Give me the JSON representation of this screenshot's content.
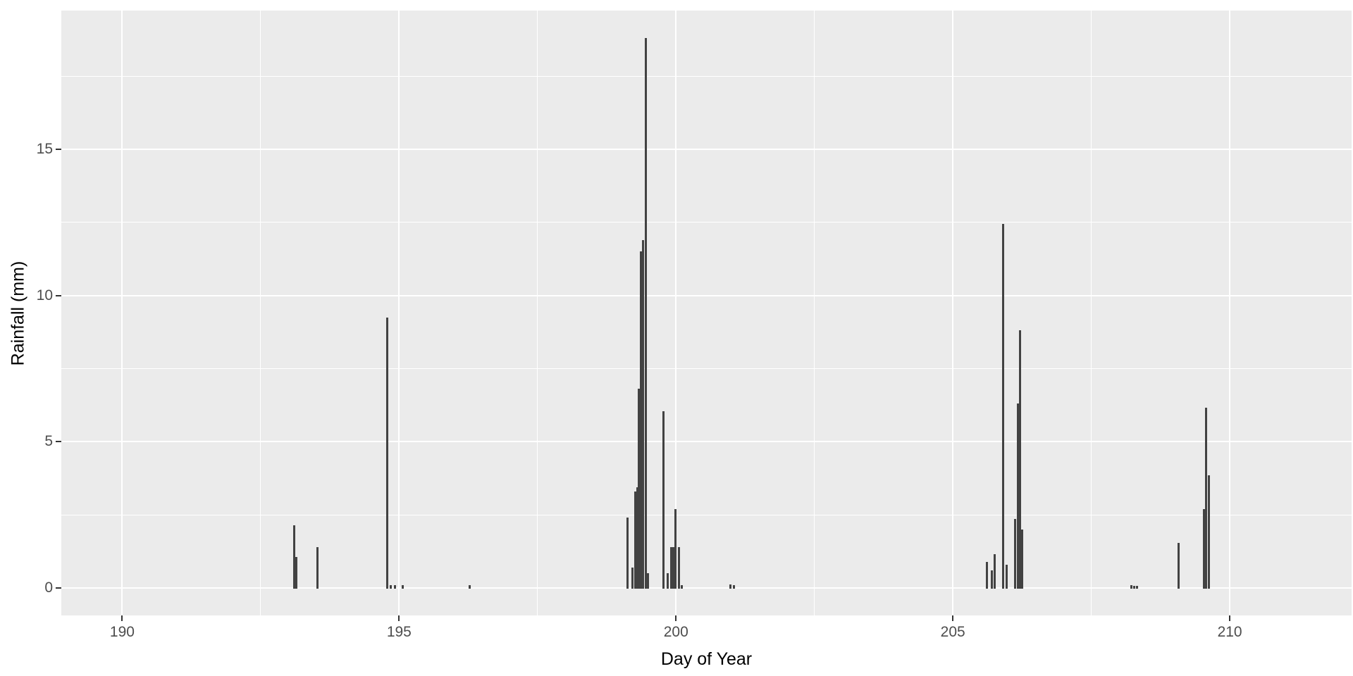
{
  "chart_data": {
    "type": "bar",
    "title": "",
    "xlabel": "Day of Year",
    "ylabel": "Rainfall (mm)",
    "grid": true,
    "legend_position": "none",
    "panel_background": "#EBEBEB",
    "gridline_color": "#ffffff",
    "bar_color": "#424242",
    "tick_color": "#333333",
    "tick_text_color": "#4D4D4D",
    "xlim": [
      188.9,
      212.2
    ],
    "ylim": [
      -0.94,
      19.74
    ],
    "x_ticks": [
      190,
      195,
      200,
      205,
      210
    ],
    "x_tick_labels": [
      "190",
      "195",
      "200",
      "205",
      "210"
    ],
    "x_minor_ticks": [
      192.5,
      197.5,
      202.5,
      207.5
    ],
    "y_ticks": [
      0,
      5,
      10,
      15
    ],
    "y_tick_labels": [
      "0",
      "5",
      "10",
      "15"
    ],
    "y_minor_ticks": [
      2.5,
      7.5,
      12.5,
      17.5
    ],
    "bar_width_days": 0.0375,
    "series": [
      {
        "name": "rainfall_mm",
        "points": [
          [
            193.11,
            2.15
          ],
          [
            193.15,
            1.05
          ],
          [
            193.53,
            1.4
          ],
          [
            194.79,
            9.25
          ],
          [
            194.85,
            0.1
          ],
          [
            194.93,
            0.1
          ],
          [
            195.07,
            0.1
          ],
          [
            196.28,
            0.1
          ],
          [
            199.13,
            2.4
          ],
          [
            199.21,
            0.7
          ],
          [
            199.26,
            3.3
          ],
          [
            199.3,
            3.45
          ],
          [
            199.33,
            6.8
          ],
          [
            199.37,
            11.5
          ],
          [
            199.41,
            11.9
          ],
          [
            199.45,
            18.8
          ],
          [
            199.49,
            0.5
          ],
          [
            199.78,
            6.05
          ],
          [
            199.85,
            0.5
          ],
          [
            199.92,
            1.4
          ],
          [
            199.95,
            1.4
          ],
          [
            199.99,
            2.7
          ],
          [
            200.05,
            1.4
          ],
          [
            200.11,
            0.1
          ],
          [
            200.98,
            0.12
          ],
          [
            201.05,
            0.1
          ],
          [
            205.62,
            0.9
          ],
          [
            205.7,
            0.6
          ],
          [
            205.76,
            1.15
          ],
          [
            205.91,
            12.45
          ],
          [
            205.97,
            0.8
          ],
          [
            206.13,
            2.35
          ],
          [
            206.17,
            6.3
          ],
          [
            206.21,
            8.8
          ],
          [
            206.25,
            2.0
          ],
          [
            208.22,
            0.1
          ],
          [
            208.28,
            0.08
          ],
          [
            208.32,
            0.06
          ],
          [
            209.07,
            1.55
          ],
          [
            209.53,
            2.7
          ],
          [
            209.57,
            6.15
          ],
          [
            209.62,
            3.85
          ]
        ]
      }
    ]
  }
}
